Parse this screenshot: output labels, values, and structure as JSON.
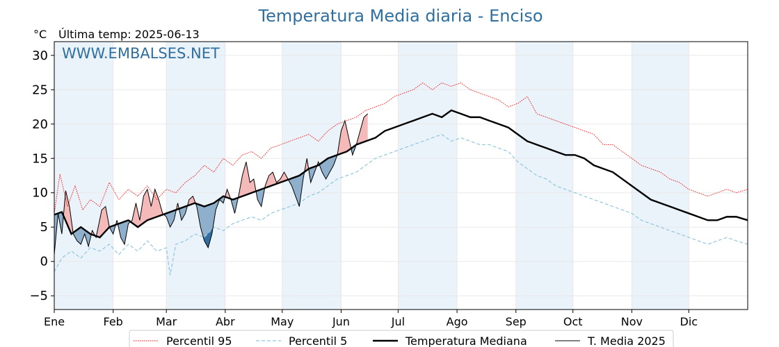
{
  "chart_data": {
    "type": "line",
    "title": "Temperatura Media diaria - Enciso",
    "ylabel": "°C",
    "subtitle": "Última temp: 2025-06-13",
    "watermark": "WWW.EMBALSES.NET",
    "ylim": [
      -7,
      32
    ],
    "yticks": [
      -5,
      0,
      5,
      10,
      15,
      20,
      25,
      30
    ],
    "month_labels": [
      "Ene",
      "Feb",
      "Mar",
      "Abr",
      "May",
      "Jun",
      "Jul",
      "Ago",
      "Sep",
      "Oct",
      "Nov",
      "Dic"
    ],
    "month_start_days": [
      1,
      32,
      60,
      91,
      121,
      152,
      182,
      213,
      244,
      274,
      305,
      335
    ],
    "x_range_days": [
      1,
      366
    ],
    "legend_position": "bottom",
    "colors": {
      "title": "#2f6f9f",
      "p95": "#ff0000",
      "p5": "#8fc7dd",
      "median": "#000000",
      "current": "#000000",
      "fill_warm": "#f4b9b9",
      "fill_cold": "#8fb0cc",
      "fill_cold_deep": "#2f6fa3",
      "band": "#eaf2fa"
    },
    "series": [
      {
        "name": "Percentil 95",
        "key": "p95",
        "style": "dotted",
        "points": [
          [
            1,
            7
          ],
          [
            4,
            12.7
          ],
          [
            8,
            8
          ],
          [
            12,
            11
          ],
          [
            16,
            7.5
          ],
          [
            20,
            9
          ],
          [
            25,
            8
          ],
          [
            30,
            11.5
          ],
          [
            35,
            9
          ],
          [
            40,
            10.5
          ],
          [
            45,
            9.5
          ],
          [
            50,
            11
          ],
          [
            55,
            9
          ],
          [
            60,
            10.5
          ],
          [
            65,
            10
          ],
          [
            70,
            11.5
          ],
          [
            75,
            12.5
          ],
          [
            80,
            14
          ],
          [
            85,
            13
          ],
          [
            90,
            15
          ],
          [
            95,
            14
          ],
          [
            100,
            15.5
          ],
          [
            105,
            16
          ],
          [
            110,
            15
          ],
          [
            115,
            16.5
          ],
          [
            120,
            17
          ],
          [
            125,
            17.5
          ],
          [
            130,
            18
          ],
          [
            135,
            18.5
          ],
          [
            140,
            17.5
          ],
          [
            145,
            19
          ],
          [
            150,
            20
          ],
          [
            155,
            20.5
          ],
          [
            160,
            21
          ],
          [
            165,
            22
          ],
          [
            170,
            22.5
          ],
          [
            175,
            23
          ],
          [
            180,
            24
          ],
          [
            185,
            24.5
          ],
          [
            190,
            25
          ],
          [
            195,
            26
          ],
          [
            200,
            25
          ],
          [
            205,
            26
          ],
          [
            210,
            25.5
          ],
          [
            215,
            26
          ],
          [
            220,
            25
          ],
          [
            225,
            24.5
          ],
          [
            230,
            24
          ],
          [
            235,
            23.5
          ],
          [
            240,
            22.5
          ],
          [
            245,
            23
          ],
          [
            250,
            24
          ],
          [
            255,
            21.5
          ],
          [
            260,
            21
          ],
          [
            265,
            20.5
          ],
          [
            270,
            20
          ],
          [
            275,
            19.5
          ],
          [
            280,
            19
          ],
          [
            285,
            18.5
          ],
          [
            290,
            17
          ],
          [
            295,
            17
          ],
          [
            300,
            16
          ],
          [
            305,
            15
          ],
          [
            310,
            14
          ],
          [
            315,
            13.5
          ],
          [
            320,
            13
          ],
          [
            325,
            12
          ],
          [
            330,
            11.5
          ],
          [
            335,
            10.5
          ],
          [
            340,
            10
          ],
          [
            345,
            9.5
          ],
          [
            350,
            10
          ],
          [
            355,
            10.5
          ],
          [
            360,
            10
          ],
          [
            366,
            10.5
          ]
        ]
      },
      {
        "name": "Percentil 5",
        "key": "p5",
        "style": "dashed",
        "points": [
          [
            1,
            -1.5
          ],
          [
            5,
            0.5
          ],
          [
            10,
            1.5
          ],
          [
            15,
            0.5
          ],
          [
            20,
            2
          ],
          [
            25,
            1.5
          ],
          [
            30,
            2.5
          ],
          [
            35,
            1
          ],
          [
            40,
            2.5
          ],
          [
            45,
            1.5
          ],
          [
            50,
            3
          ],
          [
            55,
            1.5
          ],
          [
            60,
            2
          ],
          [
            62,
            -2
          ],
          [
            65,
            2.5
          ],
          [
            70,
            3
          ],
          [
            75,
            4
          ],
          [
            80,
            3.5
          ],
          [
            85,
            5
          ],
          [
            90,
            4.5
          ],
          [
            95,
            5.5
          ],
          [
            100,
            6
          ],
          [
            105,
            6.5
          ],
          [
            110,
            6
          ],
          [
            115,
            7
          ],
          [
            120,
            7.5
          ],
          [
            125,
            8
          ],
          [
            130,
            8.5
          ],
          [
            135,
            9.5
          ],
          [
            140,
            10
          ],
          [
            145,
            11
          ],
          [
            150,
            12
          ],
          [
            155,
            12.5
          ],
          [
            160,
            13
          ],
          [
            165,
            14
          ],
          [
            170,
            15
          ],
          [
            175,
            15.5
          ],
          [
            180,
            16
          ],
          [
            185,
            16.5
          ],
          [
            190,
            17
          ],
          [
            195,
            17.5
          ],
          [
            200,
            18
          ],
          [
            205,
            18.5
          ],
          [
            210,
            17.5
          ],
          [
            215,
            18
          ],
          [
            220,
            17.5
          ],
          [
            225,
            17
          ],
          [
            230,
            17
          ],
          [
            235,
            16.5
          ],
          [
            240,
            16
          ],
          [
            245,
            14.5
          ],
          [
            250,
            13.5
          ],
          [
            255,
            12.5
          ],
          [
            260,
            12
          ],
          [
            265,
            11
          ],
          [
            270,
            10.5
          ],
          [
            275,
            10
          ],
          [
            280,
            9.5
          ],
          [
            285,
            9
          ],
          [
            290,
            8.5
          ],
          [
            295,
            8
          ],
          [
            300,
            7.5
          ],
          [
            305,
            7
          ],
          [
            310,
            6
          ],
          [
            315,
            5.5
          ],
          [
            320,
            5
          ],
          [
            325,
            4.5
          ],
          [
            330,
            4
          ],
          [
            335,
            3.5
          ],
          [
            340,
            3
          ],
          [
            345,
            2.5
          ],
          [
            350,
            3
          ],
          [
            355,
            3.5
          ],
          [
            360,
            3
          ],
          [
            366,
            2.5
          ]
        ]
      },
      {
        "name": "Temperatura Mediana",
        "key": "median",
        "style": "solid-thick",
        "points": [
          [
            1,
            6.8
          ],
          [
            5,
            7.2
          ],
          [
            10,
            4
          ],
          [
            15,
            5
          ],
          [
            20,
            4
          ],
          [
            25,
            3.5
          ],
          [
            30,
            5
          ],
          [
            35,
            5.5
          ],
          [
            40,
            6
          ],
          [
            45,
            5
          ],
          [
            50,
            6
          ],
          [
            55,
            6.5
          ],
          [
            60,
            7
          ],
          [
            65,
            7.5
          ],
          [
            70,
            8
          ],
          [
            75,
            8.5
          ],
          [
            80,
            8
          ],
          [
            85,
            8.5
          ],
          [
            90,
            9.5
          ],
          [
            95,
            9
          ],
          [
            100,
            9.5
          ],
          [
            105,
            10
          ],
          [
            110,
            10.5
          ],
          [
            115,
            11
          ],
          [
            120,
            11.5
          ],
          [
            125,
            12
          ],
          [
            130,
            12.5
          ],
          [
            135,
            13.5
          ],
          [
            140,
            14
          ],
          [
            145,
            15
          ],
          [
            150,
            15.5
          ],
          [
            155,
            16
          ],
          [
            160,
            17
          ],
          [
            165,
            17.5
          ],
          [
            170,
            18
          ],
          [
            175,
            19
          ],
          [
            180,
            19.5
          ],
          [
            185,
            20
          ],
          [
            190,
            20.5
          ],
          [
            195,
            21
          ],
          [
            200,
            21.5
          ],
          [
            205,
            21
          ],
          [
            210,
            22
          ],
          [
            215,
            21.5
          ],
          [
            220,
            21
          ],
          [
            225,
            21
          ],
          [
            230,
            20.5
          ],
          [
            235,
            20
          ],
          [
            240,
            19.5
          ],
          [
            245,
            18.5
          ],
          [
            250,
            17.5
          ],
          [
            255,
            17
          ],
          [
            260,
            16.5
          ],
          [
            265,
            16
          ],
          [
            270,
            15.5
          ],
          [
            275,
            15.5
          ],
          [
            280,
            15
          ],
          [
            285,
            14
          ],
          [
            290,
            13.5
          ],
          [
            295,
            13
          ],
          [
            300,
            12
          ],
          [
            305,
            11
          ],
          [
            310,
            10
          ],
          [
            315,
            9
          ],
          [
            320,
            8.5
          ],
          [
            325,
            8
          ],
          [
            330,
            7.5
          ],
          [
            335,
            7
          ],
          [
            340,
            6.5
          ],
          [
            345,
            6
          ],
          [
            350,
            6
          ],
          [
            355,
            6.5
          ],
          [
            360,
            6.5
          ],
          [
            366,
            6
          ]
        ]
      },
      {
        "name": "T. Media 2025",
        "key": "current",
        "style": "solid-thin",
        "points": [
          [
            1,
            1
          ],
          [
            3,
            7
          ],
          [
            5,
            4
          ],
          [
            7,
            10.3
          ],
          [
            9,
            8
          ],
          [
            11,
            4
          ],
          [
            13,
            3
          ],
          [
            15,
            2.5
          ],
          [
            17,
            4
          ],
          [
            19,
            2.2
          ],
          [
            21,
            4.5
          ],
          [
            23,
            3.5
          ],
          [
            26,
            7.5
          ],
          [
            28,
            8
          ],
          [
            30,
            5
          ],
          [
            32,
            4
          ],
          [
            34,
            6
          ],
          [
            36,
            3.5
          ],
          [
            38,
            2.5
          ],
          [
            40,
            5.5
          ],
          [
            42,
            6
          ],
          [
            44,
            8.5
          ],
          [
            46,
            6
          ],
          [
            48,
            9.5
          ],
          [
            50,
            10.5
          ],
          [
            52,
            8
          ],
          [
            54,
            10.5
          ],
          [
            56,
            9
          ],
          [
            58,
            7
          ],
          [
            60,
            6.5
          ],
          [
            62,
            5
          ],
          [
            64,
            6
          ],
          [
            66,
            8.5
          ],
          [
            68,
            6
          ],
          [
            70,
            7
          ],
          [
            72,
            9
          ],
          [
            74,
            9.5
          ],
          [
            76,
            8
          ],
          [
            78,
            5
          ],
          [
            80,
            3
          ],
          [
            82,
            2
          ],
          [
            84,
            4
          ],
          [
            86,
            7.5
          ],
          [
            88,
            9
          ],
          [
            90,
            8.5
          ],
          [
            92,
            10.5
          ],
          [
            94,
            9
          ],
          [
            96,
            7
          ],
          [
            98,
            9.5
          ],
          [
            100,
            12.5
          ],
          [
            102,
            14.5
          ],
          [
            104,
            11.5
          ],
          [
            106,
            12
          ],
          [
            108,
            9
          ],
          [
            110,
            8
          ],
          [
            112,
            11
          ],
          [
            114,
            12.5
          ],
          [
            116,
            13
          ],
          [
            118,
            11.5
          ],
          [
            120,
            12
          ],
          [
            122,
            13
          ],
          [
            124,
            12
          ],
          [
            126,
            11
          ],
          [
            128,
            9.5
          ],
          [
            130,
            8
          ],
          [
            132,
            12
          ],
          [
            134,
            15
          ],
          [
            136,
            11.5
          ],
          [
            138,
            13
          ],
          [
            140,
            14.5
          ],
          [
            142,
            13
          ],
          [
            144,
            12
          ],
          [
            146,
            13
          ],
          [
            148,
            14
          ],
          [
            150,
            15.5
          ],
          [
            152,
            19
          ],
          [
            154,
            20.5
          ],
          [
            156,
            18
          ],
          [
            158,
            15.5
          ],
          [
            160,
            17
          ],
          [
            162,
            19
          ],
          [
            164,
            21
          ],
          [
            166,
            21.5
          ]
        ]
      }
    ],
    "legend": [
      {
        "label": "Percentil 95",
        "key": "p95"
      },
      {
        "label": "Percentil 5",
        "key": "p5"
      },
      {
        "label": "Temperatura Mediana",
        "key": "median"
      },
      {
        "label": "T. Media 2025",
        "key": "current"
      }
    ]
  }
}
